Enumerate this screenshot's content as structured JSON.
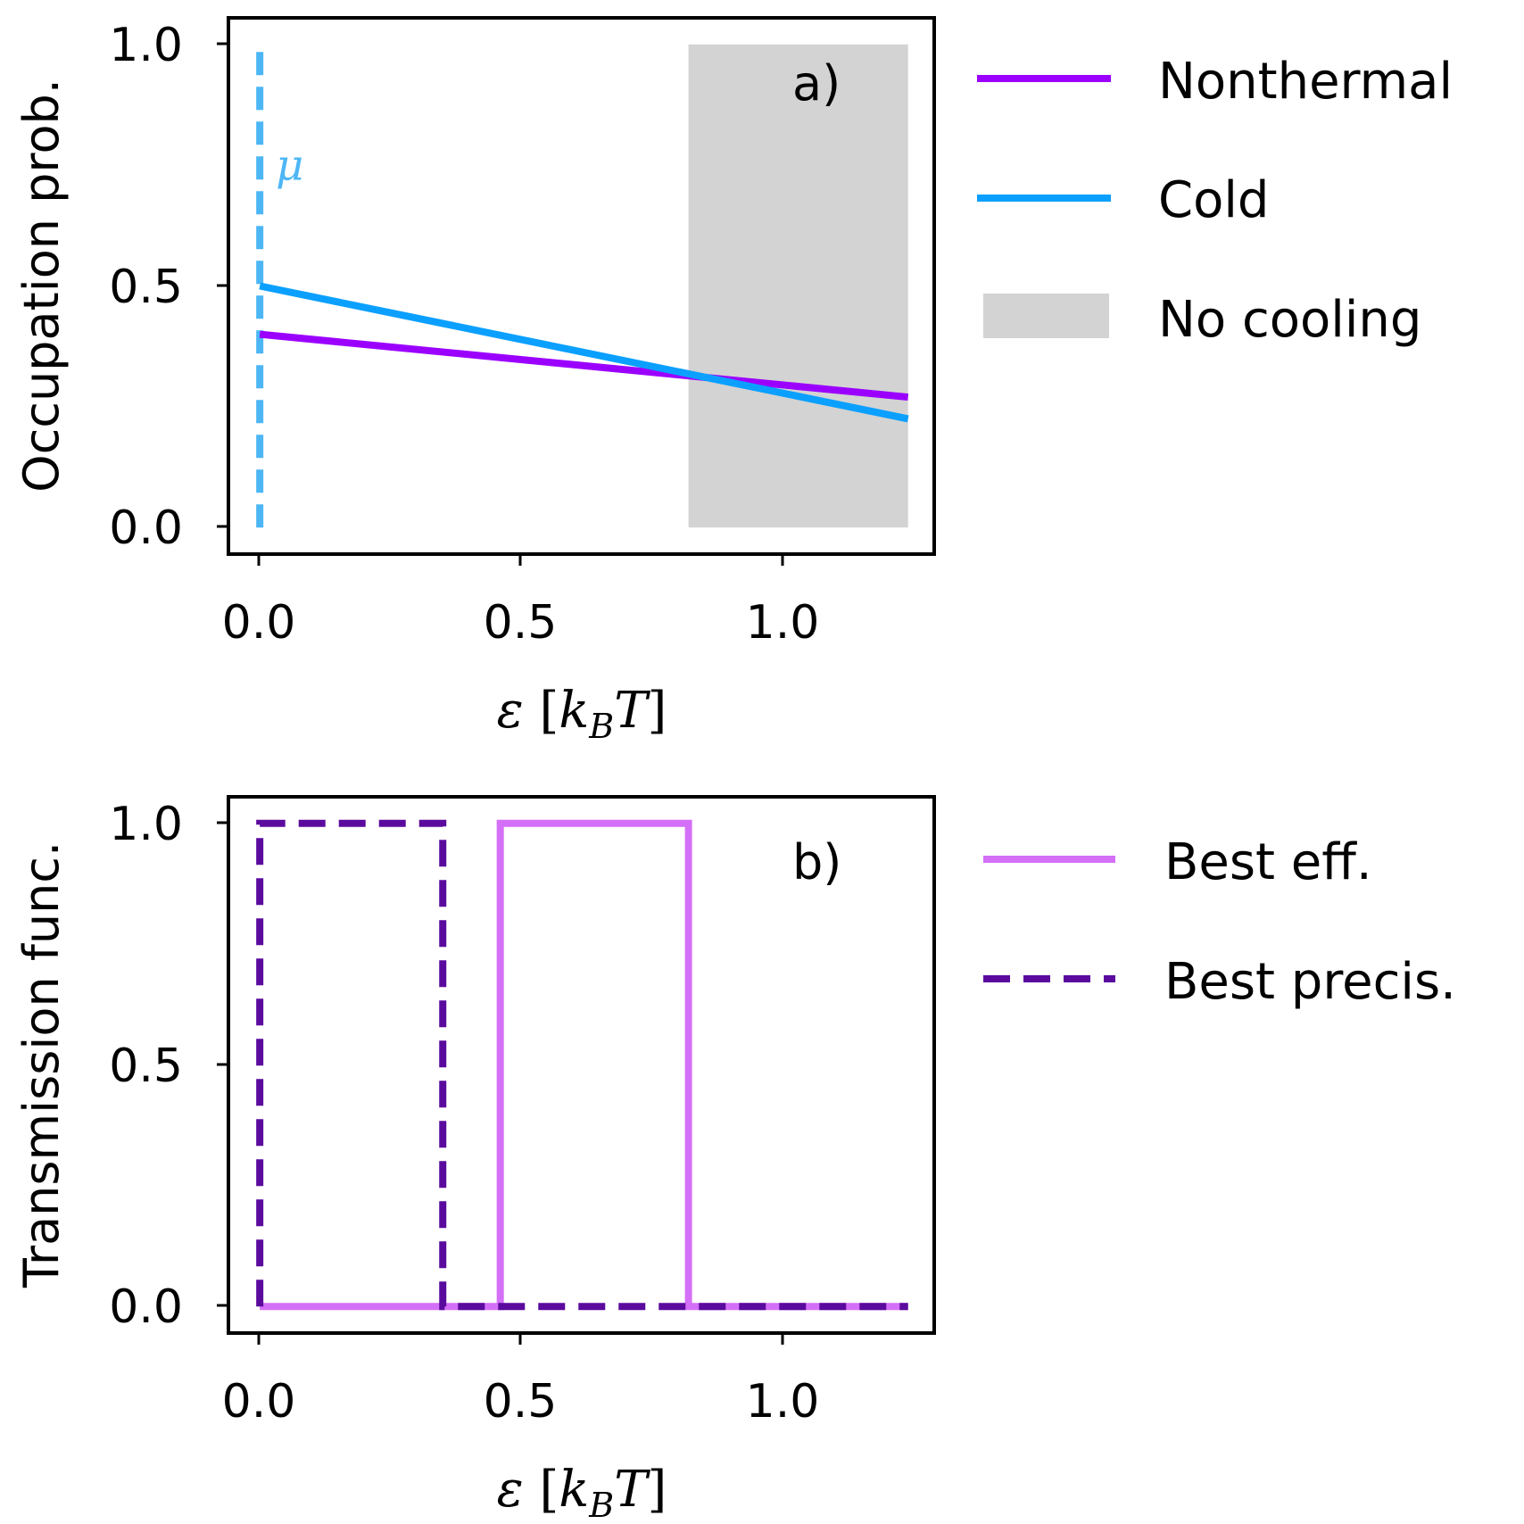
{
  "colors": {
    "nonthermal": "#9b00ff",
    "cold": "#0ba0ff",
    "no_cooling": "#d3d3d3",
    "mu_line": "#4db6f5",
    "best_eff": "#d46ff7",
    "best_precis": "#5b0a9e"
  },
  "chart_data": [
    {
      "id": "a",
      "type": "line",
      "panel_label": "a)",
      "xlabel": "ε [k_B T]",
      "xlabel_parts": {
        "eps": "ε",
        "open": "[",
        "k": "k",
        "sub": "B",
        "T": "T",
        "close": "]"
      },
      "ylabel": "Occupation prob.",
      "xlim": [
        -0.06,
        1.29
      ],
      "ylim": [
        -0.055,
        1.055
      ],
      "xticks": [
        0.0,
        0.5,
        1.0
      ],
      "xtick_labels": [
        "0.0",
        "0.5",
        "1.0"
      ],
      "yticks": [
        0.0,
        0.5,
        1.0
      ],
      "ytick_labels": [
        "0.0",
        "0.5",
        "1.0"
      ],
      "series": [
        {
          "name": "Nonthermal",
          "color_key": "nonthermal",
          "style": "solid",
          "x": [
            0.0,
            1.24
          ],
          "y": [
            0.4,
            0.27
          ]
        },
        {
          "name": "Cold",
          "color_key": "cold",
          "style": "solid",
          "x": [
            0.0,
            1.24
          ],
          "y": [
            0.5,
            0.225
          ]
        }
      ],
      "shaded_regions": [
        {
          "name": "No cooling",
          "color_key": "no_cooling",
          "x": [
            0.82,
            1.24
          ],
          "y": [
            0.0,
            1.0
          ]
        }
      ],
      "vlines": [
        {
          "label": "μ",
          "x": 0.0,
          "y": [
            0.0,
            1.0
          ],
          "style": "dashed",
          "color_key": "mu_line"
        }
      ],
      "legend": {
        "placement": "outside-right",
        "entries": [
          {
            "label": "Nonthermal",
            "kind": "line",
            "color_key": "nonthermal",
            "style": "solid"
          },
          {
            "label": "Cold",
            "kind": "line",
            "color_key": "cold",
            "style": "solid"
          },
          {
            "label": "No cooling",
            "kind": "patch",
            "color_key": "no_cooling"
          }
        ]
      }
    },
    {
      "id": "b",
      "type": "line",
      "panel_label": "b)",
      "xlabel": "ε [k_B T]",
      "xlabel_parts": {
        "eps": "ε",
        "open": "[",
        "k": "k",
        "sub": "B",
        "T": "T",
        "close": "]"
      },
      "ylabel": "Transmission func.",
      "xlim": [
        -0.06,
        1.29
      ],
      "ylim": [
        -0.055,
        1.055
      ],
      "xticks": [
        0.0,
        0.5,
        1.0
      ],
      "xtick_labels": [
        "0.0",
        "0.5",
        "1.0"
      ],
      "yticks": [
        0.0,
        0.5,
        1.0
      ],
      "ytick_labels": [
        "0.0",
        "0.5",
        "1.0"
      ],
      "series": [
        {
          "name": "Best eff.",
          "color_key": "best_eff",
          "style": "solid",
          "x": [
            0.0,
            0.46,
            0.46,
            0.82,
            0.82,
            1.24
          ],
          "y": [
            0,
            0,
            1,
            1,
            0,
            0
          ]
        },
        {
          "name": "Best precis.",
          "color_key": "best_precis",
          "style": "dashed",
          "x": [
            0.0,
            0.0,
            0.35,
            0.35,
            1.24
          ],
          "y": [
            0,
            1,
            1,
            0,
            0
          ]
        }
      ],
      "legend": {
        "placement": "outside-right",
        "entries": [
          {
            "label": "Best eff.",
            "kind": "line",
            "color_key": "best_eff",
            "style": "solid"
          },
          {
            "label": "Best precis.",
            "kind": "line",
            "color_key": "best_precis",
            "style": "dashed"
          }
        ]
      }
    }
  ]
}
